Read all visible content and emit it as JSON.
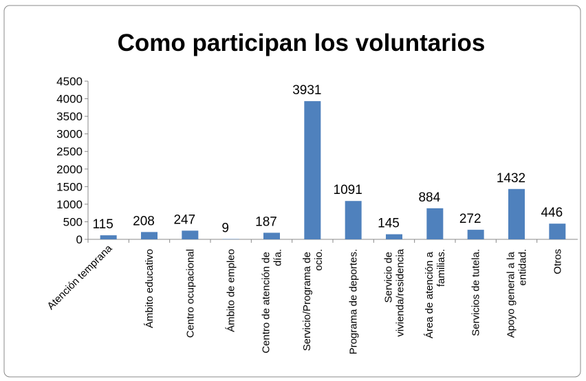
{
  "chart_data": {
    "type": "bar",
    "title": "Como participan los voluntarios",
    "categories": [
      "Atención temprana",
      "Ámbito educativo",
      "Centro ocupacional",
      "Ámbito de empleo",
      "Centro de atención de día.",
      "Servicio/Programa de ocio.",
      "Programa de deportes.",
      "Servicio de vivienda/residencia",
      "Área de atención a familias.",
      "Servicios de tutela.",
      "Apoyo general a la entidad.",
      "Otros"
    ],
    "values": [
      115,
      208,
      247,
      9,
      187,
      3931,
      1091,
      145,
      884,
      272,
      1432,
      446
    ],
    "color": "#4f81bd",
    "ylim": [
      0,
      4500
    ],
    "yticks": [
      0,
      500,
      1000,
      1500,
      2000,
      2500,
      3000,
      3500,
      4000,
      4500
    ],
    "grid": false
  }
}
